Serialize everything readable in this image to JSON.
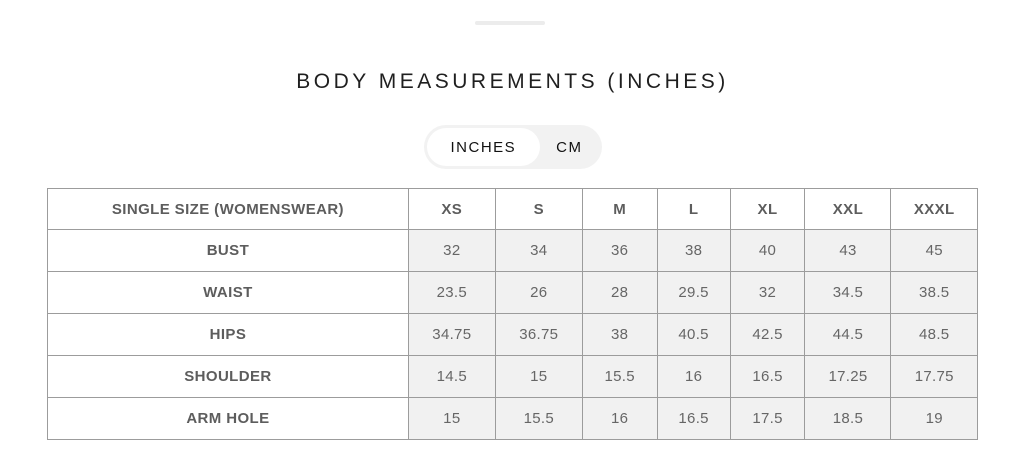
{
  "panel": {
    "title": "BODY MEASUREMENTS (INCHES)"
  },
  "unit_toggle": {
    "selected": "INCHES",
    "options": [
      {
        "label": "INCHES"
      },
      {
        "label": "CM"
      }
    ]
  },
  "table": {
    "corner_label": "SINGLE SIZE (WOMENSWEAR)",
    "size_columns": [
      "XS",
      "S",
      "M",
      "L",
      "XL",
      "XXL",
      "XXXL"
    ],
    "rows": [
      {
        "label": "BUST",
        "values": [
          "32",
          "34",
          "36",
          "38",
          "40",
          "43",
          "45"
        ]
      },
      {
        "label": "WAIST",
        "values": [
          "23.5",
          "26",
          "28",
          "29.5",
          "32",
          "34.5",
          "38.5"
        ]
      },
      {
        "label": "HIPS",
        "values": [
          "34.75",
          "36.75",
          "38",
          "40.5",
          "42.5",
          "44.5",
          "48.5"
        ]
      },
      {
        "label": "SHOULDER",
        "values": [
          "14.5",
          "15",
          "15.5",
          "16",
          "16.5",
          "17.25",
          "17.75"
        ]
      },
      {
        "label": "ARM HOLE",
        "values": [
          "15",
          "15.5",
          "16",
          "16.5",
          "17.5",
          "18.5",
          "19"
        ]
      }
    ]
  },
  "colors": {
    "cell_background": "#f1f1f1",
    "table_border": "#9c9c9c",
    "toggle_background": "#f2f2f2"
  }
}
